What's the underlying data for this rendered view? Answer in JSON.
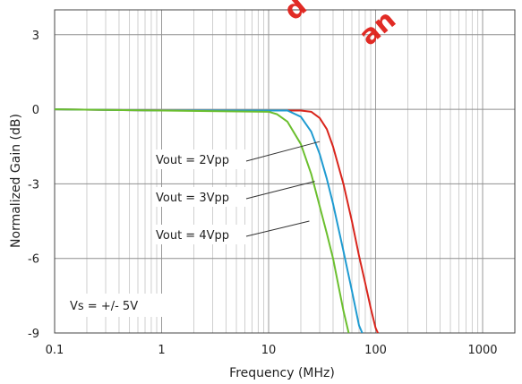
{
  "watermark": {
    "line1": "d",
    "line2": "an",
    "color": "#e0201a"
  },
  "chart_data": {
    "type": "line",
    "title": "",
    "xlabel": "Frequency (MHz)",
    "ylabel": "Normalized Gain (dB)",
    "xscale": "log",
    "xlim": [
      0.1,
      2000
    ],
    "ylim": [
      -9,
      4
    ],
    "x_ticks": [
      "0.1",
      "1",
      "10",
      "100",
      "1000"
    ],
    "y_ticks": [
      "3",
      "0",
      "-3",
      "-6",
      "-9"
    ],
    "grid": true,
    "series": [
      {
        "name": "Vout = 2Vpp",
        "color": "#d9251c",
        "x": [
          0.1,
          1,
          10,
          20,
          25,
          30,
          35,
          40,
          50,
          60,
          70,
          80,
          90,
          100,
          105
        ],
        "y": [
          0,
          -0.05,
          -0.05,
          -0.05,
          -0.1,
          -0.35,
          -0.8,
          -1.5,
          -3.0,
          -4.5,
          -5.9,
          -7.0,
          -8.0,
          -8.8,
          -9.0
        ]
      },
      {
        "name": "Vout = 3Vpp",
        "color": "#1f9bd1",
        "x": [
          0.1,
          1,
          10,
          15,
          20,
          25,
          30,
          35,
          40,
          50,
          60,
          70,
          75
        ],
        "y": [
          0,
          -0.05,
          -0.05,
          -0.05,
          -0.3,
          -0.9,
          -1.8,
          -2.8,
          -3.8,
          -5.7,
          -7.3,
          -8.7,
          -9.0
        ]
      },
      {
        "name": "Vout = 4Vpp",
        "color": "#6bbf2e",
        "x": [
          0.1,
          1,
          10,
          12,
          15,
          20,
          25,
          30,
          35,
          40,
          50,
          56
        ],
        "y": [
          0,
          -0.05,
          -0.1,
          -0.2,
          -0.5,
          -1.4,
          -2.6,
          -3.9,
          -5.0,
          -6.0,
          -8.1,
          -9.0
        ]
      }
    ],
    "annotations": [
      {
        "text": "Vout = 2Vpp",
        "points_to": {
          "x": 30,
          "y": -1.3
        }
      },
      {
        "text": "Vout = 3Vpp",
        "points_to": {
          "x": 27,
          "y": -2.9
        }
      },
      {
        "text": "Vout = 4Vpp",
        "points_to": {
          "x": 24,
          "y": -4.5
        }
      },
      {
        "text": "Vs = +/- 5V"
      }
    ]
  }
}
